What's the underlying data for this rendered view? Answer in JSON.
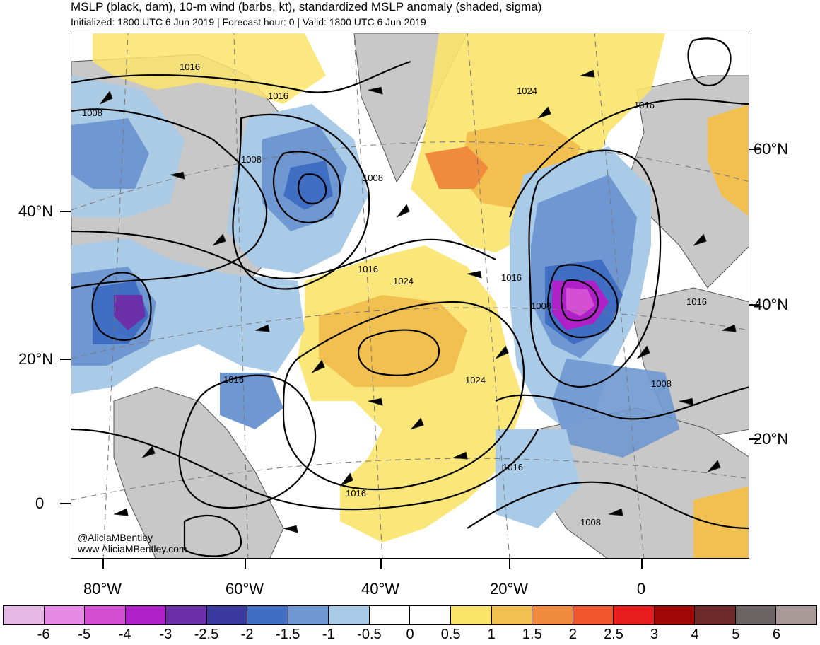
{
  "header": {
    "title": "MSLP (black, dam), 10-m wind (barbs, kt), standardized MSLP anomaly (shaded, sigma)",
    "subtitle": "Initialized: 1800 UTC 6 Jun 2019 | Forecast hour: 0 | Valid: 1800 UTC 6 Jun 2019"
  },
  "map": {
    "left_lat_labels": [
      "40°N",
      "20°N",
      "0"
    ],
    "right_lat_labels": [
      "60°N",
      "40°N",
      "20°N"
    ],
    "lon_labels": [
      "80°W",
      "60°W",
      "40°W",
      "20°W",
      "0"
    ],
    "contour_labels": [
      "1016",
      "1016",
      "1008",
      "1008",
      "1008",
      "1024",
      "1016",
      "1016",
      "1024",
      "1016",
      "1008",
      "1016",
      "1016",
      "1024",
      "1008",
      "1016",
      "1016",
      "1008"
    ],
    "credits": [
      "@AliciaMBentley",
      "www.AliciaMBentley.com"
    ],
    "colors": {
      "land": "#c8c8c8",
      "ocean": "#ffffff",
      "coastline": "#555555",
      "contour": "#000000"
    }
  },
  "colorbar": {
    "labels": [
      "-6",
      "-5",
      "-4",
      "-3",
      "-2.5",
      "-2",
      "-1.5",
      "-1",
      "-0.5",
      "0",
      "0.5",
      "1",
      "1.5",
      "2",
      "2.5",
      "3",
      "4",
      "5",
      "6"
    ],
    "colors": [
      "#e6b8e6",
      "#e68ae6",
      "#d44fd4",
      "#b020c8",
      "#6b2fa8",
      "#3a3a9e",
      "#3f6ec2",
      "#6f98d2",
      "#a9cbe8",
      "#ffffff",
      "#ffffff",
      "#fbe46a",
      "#f2c050",
      "#f08a3c",
      "#f0572f",
      "#e81c1c",
      "#a00808",
      "#6e2a2a",
      "#6c6464",
      "#a89898"
    ]
  }
}
